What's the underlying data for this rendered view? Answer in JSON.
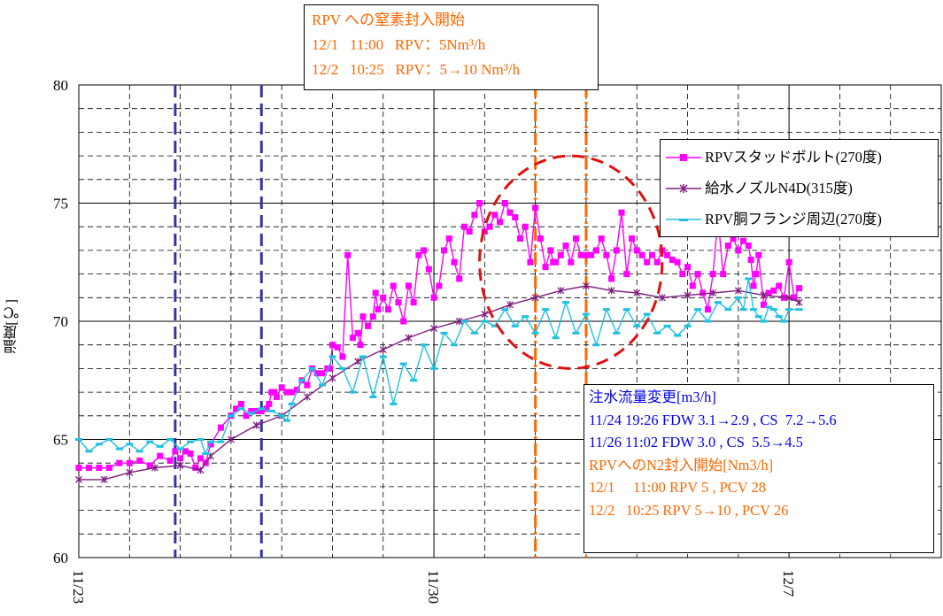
{
  "chart_data": {
    "type": "line",
    "ylabel": "温度[℃]",
    "ylim": [
      60,
      80
    ],
    "xlim": [
      "11/23",
      "12/10"
    ],
    "y_ticks": [
      60,
      65,
      70,
      75,
      80
    ],
    "x_ticks": [
      "11/23",
      "11/30",
      "12/7"
    ],
    "grid": true,
    "legend_position": "top-right",
    "colors": {
      "stud_bolt": "#ff00ff",
      "nozzle": "#7f1f7f",
      "flange": "#20c0e0",
      "blue_lines": "#3333aa",
      "orange_lines": "#ff6600",
      "ellipse": "#e01010"
    },
    "series": [
      {
        "name": "RPVスタッドボルト(270度)",
        "marker": "square",
        "points": [
          [
            0.0,
            63.8
          ],
          [
            0.2,
            63.8
          ],
          [
            0.4,
            63.8
          ],
          [
            0.6,
            63.8
          ],
          [
            0.8,
            64.0
          ],
          [
            1.0,
            64.0
          ],
          [
            1.2,
            64.1
          ],
          [
            1.4,
            63.9
          ],
          [
            1.6,
            64.3
          ],
          [
            1.8,
            64.1
          ],
          [
            1.9,
            64.5
          ],
          [
            2.0,
            64.2
          ],
          [
            2.1,
            64.5
          ],
          [
            2.2,
            64.4
          ],
          [
            2.3,
            63.8
          ],
          [
            2.4,
            64.2
          ],
          [
            2.5,
            64.0
          ],
          [
            2.6,
            64.8
          ],
          [
            2.8,
            65.5
          ],
          [
            3.0,
            66.0
          ],
          [
            3.1,
            66.3
          ],
          [
            3.2,
            66.5
          ],
          [
            3.3,
            66.0
          ],
          [
            3.4,
            66.2
          ],
          [
            3.5,
            66.2
          ],
          [
            3.6,
            66.2
          ],
          [
            3.7,
            66.3
          ],
          [
            3.75,
            66.5
          ],
          [
            3.8,
            67.0
          ],
          [
            3.85,
            67.0
          ],
          [
            3.9,
            66.8
          ],
          [
            4.0,
            67.2
          ],
          [
            4.1,
            67.0
          ],
          [
            4.2,
            67.0
          ],
          [
            4.3,
            67.1
          ],
          [
            4.4,
            67.5
          ],
          [
            4.5,
            67.3
          ],
          [
            4.6,
            68.0
          ],
          [
            4.7,
            67.8
          ],
          [
            4.8,
            67.8
          ],
          [
            4.9,
            68.0
          ],
          [
            4.95,
            68.0
          ],
          [
            5.0,
            69.0
          ],
          [
            5.1,
            68.9
          ],
          [
            5.2,
            68.5
          ],
          [
            5.3,
            72.8
          ],
          [
            5.4,
            69.3
          ],
          [
            5.5,
            69.5
          ],
          [
            5.55,
            69.0
          ],
          [
            5.6,
            70.2
          ],
          [
            5.7,
            69.8
          ],
          [
            5.8,
            70.2
          ],
          [
            5.85,
            71.2
          ],
          [
            5.9,
            70.5
          ],
          [
            6.0,
            71.0
          ],
          [
            6.1,
            70.5
          ],
          [
            6.2,
            71.5
          ],
          [
            6.3,
            70.8
          ],
          [
            6.4,
            70.0
          ],
          [
            6.5,
            71.5
          ],
          [
            6.6,
            70.8
          ],
          [
            6.7,
            72.8
          ],
          [
            6.8,
            73.0
          ],
          [
            6.9,
            72.2
          ],
          [
            7.0,
            71.0
          ],
          [
            7.1,
            71.5
          ],
          [
            7.2,
            73.0
          ],
          [
            7.3,
            73.5
          ],
          [
            7.4,
            72.5
          ],
          [
            7.5,
            71.8
          ],
          [
            7.6,
            74.0
          ],
          [
            7.7,
            73.8
          ],
          [
            7.8,
            74.5
          ],
          [
            7.9,
            75.0
          ],
          [
            8.0,
            73.8
          ],
          [
            8.1,
            74.0
          ],
          [
            8.2,
            74.5
          ],
          [
            8.3,
            74.2
          ],
          [
            8.4,
            75.0
          ],
          [
            8.5,
            74.6
          ],
          [
            8.6,
            74.4
          ],
          [
            8.7,
            73.5
          ],
          [
            8.8,
            74.0
          ],
          [
            8.9,
            72.5
          ],
          [
            9.0,
            74.8
          ],
          [
            9.1,
            73.5
          ],
          [
            9.2,
            72.3
          ],
          [
            9.3,
            73.0
          ],
          [
            9.35,
            72.5
          ],
          [
            9.4,
            72.5
          ],
          [
            9.5,
            72.8
          ],
          [
            9.6,
            73.2
          ],
          [
            9.7,
            72.5
          ],
          [
            9.8,
            73.5
          ],
          [
            9.9,
            72.8
          ],
          [
            10.0,
            72.8
          ],
          [
            10.1,
            72.8
          ],
          [
            10.2,
            73.0
          ],
          [
            10.3,
            73.5
          ],
          [
            10.4,
            72.8
          ],
          [
            10.5,
            71.8
          ],
          [
            10.6,
            73.0
          ],
          [
            10.7,
            74.6
          ],
          [
            10.8,
            72.0
          ],
          [
            10.9,
            73.5
          ],
          [
            11.0,
            73.0
          ],
          [
            11.1,
            72.8
          ],
          [
            11.2,
            72.5
          ],
          [
            11.3,
            72.8
          ],
          [
            11.4,
            72.5
          ],
          [
            11.5,
            73.0
          ],
          [
            11.6,
            72.8
          ],
          [
            11.7,
            72.6
          ],
          [
            11.8,
            72.5
          ],
          [
            11.9,
            72.0
          ],
          [
            12.0,
            72.3
          ],
          [
            12.1,
            71.5
          ],
          [
            12.2,
            72.0
          ],
          [
            12.3,
            71.2
          ],
          [
            12.4,
            70.5
          ],
          [
            12.5,
            72.0
          ],
          [
            12.6,
            74.4
          ],
          [
            12.7,
            72.0
          ],
          [
            12.8,
            73.2
          ],
          [
            12.9,
            73.5
          ],
          [
            13.0,
            73.0
          ],
          [
            13.1,
            73.4
          ],
          [
            13.2,
            73.2
          ],
          [
            13.25,
            72.6
          ],
          [
            13.3,
            71.5
          ],
          [
            13.35,
            72.0
          ],
          [
            13.4,
            72.8
          ],
          [
            13.5,
            70.7
          ],
          [
            13.6,
            71.2
          ],
          [
            13.7,
            71.3
          ],
          [
            13.8,
            71.5
          ],
          [
            13.9,
            71.0
          ],
          [
            14.0,
            72.5
          ],
          [
            14.1,
            71.0
          ],
          [
            14.2,
            71.4
          ]
        ]
      },
      {
        "name": "給水ノズルN4D(315度)",
        "marker": "star",
        "points": [
          [
            0.0,
            63.3
          ],
          [
            0.5,
            63.3
          ],
          [
            1.0,
            63.6
          ],
          [
            1.5,
            63.8
          ],
          [
            2.0,
            63.9
          ],
          [
            2.4,
            63.7
          ],
          [
            2.6,
            64.3
          ],
          [
            3.0,
            65.0
          ],
          [
            3.5,
            65.6
          ],
          [
            4.0,
            66.0
          ],
          [
            4.5,
            66.8
          ],
          [
            5.0,
            67.6
          ],
          [
            5.5,
            68.3
          ],
          [
            6.0,
            68.8
          ],
          [
            6.5,
            69.3
          ],
          [
            7.0,
            69.7
          ],
          [
            7.5,
            70.0
          ],
          [
            8.0,
            70.3
          ],
          [
            8.5,
            70.7
          ],
          [
            9.0,
            71.0
          ],
          [
            9.5,
            71.3
          ],
          [
            10.0,
            71.5
          ],
          [
            10.5,
            71.3
          ],
          [
            11.0,
            71.2
          ],
          [
            11.5,
            71.0
          ],
          [
            12.0,
            71.1
          ],
          [
            12.5,
            71.2
          ],
          [
            13.0,
            71.3
          ],
          [
            13.5,
            71.1
          ],
          [
            14.0,
            71.0
          ],
          [
            14.2,
            70.8
          ]
        ]
      },
      {
        "name": "RPV胴フランジ周辺(270度)",
        "marker": "dash",
        "points": [
          [
            0.0,
            65.0
          ],
          [
            0.2,
            64.5
          ],
          [
            0.4,
            64.8
          ],
          [
            0.6,
            65.0
          ],
          [
            0.8,
            64.6
          ],
          [
            1.0,
            64.8
          ],
          [
            1.2,
            64.5
          ],
          [
            1.4,
            64.9
          ],
          [
            1.6,
            64.7
          ],
          [
            1.8,
            65.0
          ],
          [
            2.0,
            64.6
          ],
          [
            2.2,
            64.9
          ],
          [
            2.4,
            65.0
          ],
          [
            2.5,
            64.4
          ],
          [
            2.6,
            64.9
          ],
          [
            2.8,
            64.9
          ],
          [
            3.0,
            66.0
          ],
          [
            3.2,
            66.3
          ],
          [
            3.4,
            66.1
          ],
          [
            3.6,
            66.3
          ],
          [
            3.8,
            66.2
          ],
          [
            4.0,
            66.0
          ],
          [
            4.1,
            65.8
          ],
          [
            4.2,
            66.5
          ],
          [
            4.4,
            67.5
          ],
          [
            4.6,
            68.0
          ],
          [
            4.8,
            67.3
          ],
          [
            5.0,
            68.5
          ],
          [
            5.2,
            68.0
          ],
          [
            5.4,
            67.0
          ],
          [
            5.6,
            68.5
          ],
          [
            5.8,
            66.8
          ],
          [
            6.0,
            68.5
          ],
          [
            6.2,
            66.5
          ],
          [
            6.4,
            68.2
          ],
          [
            6.6,
            67.5
          ],
          [
            6.8,
            69.0
          ],
          [
            7.0,
            68.0
          ],
          [
            7.2,
            69.5
          ],
          [
            7.4,
            69.0
          ],
          [
            7.6,
            70.0
          ],
          [
            7.8,
            69.5
          ],
          [
            8.0,
            70.0
          ],
          [
            8.2,
            69.8
          ],
          [
            8.4,
            70.5
          ],
          [
            8.6,
            69.8
          ],
          [
            8.8,
            70.2
          ],
          [
            9.0,
            69.5
          ],
          [
            9.2,
            70.5
          ],
          [
            9.4,
            69.3
          ],
          [
            9.6,
            70.8
          ],
          [
            9.8,
            69.5
          ],
          [
            10.0,
            70.3
          ],
          [
            10.2,
            69.0
          ],
          [
            10.4,
            70.5
          ],
          [
            10.6,
            69.5
          ],
          [
            10.8,
            70.5
          ],
          [
            11.0,
            69.8
          ],
          [
            11.2,
            70.3
          ],
          [
            11.4,
            69.5
          ],
          [
            11.6,
            69.8
          ],
          [
            11.8,
            69.4
          ],
          [
            12.0,
            69.8
          ],
          [
            12.2,
            70.5
          ],
          [
            12.4,
            70.0
          ],
          [
            12.6,
            70.8
          ],
          [
            12.8,
            70.5
          ],
          [
            13.0,
            71.0
          ],
          [
            13.1,
            70.5
          ],
          [
            13.2,
            71.8
          ],
          [
            13.3,
            70.5
          ],
          [
            13.4,
            70.2
          ],
          [
            13.5,
            70.0
          ],
          [
            13.6,
            70.6
          ],
          [
            13.7,
            70.5
          ],
          [
            13.8,
            70.2
          ],
          [
            13.9,
            70.0
          ],
          [
            14.0,
            70.5
          ],
          [
            14.2,
            70.5
          ]
        ]
      }
    ],
    "vertical_markers": [
      {
        "x": 1.9,
        "style": "dashed",
        "color": "#3333aa"
      },
      {
        "x": 3.6,
        "style": "dashed",
        "color": "#3333aa"
      },
      {
        "x": 9.0,
        "style": "dashdot",
        "color": "#ff6600"
      },
      {
        "x": 10.0,
        "style": "dashdot",
        "color": "#ff6600"
      }
    ],
    "highlight_ellipse": {
      "center": [
        9.7,
        72.5
      ],
      "radii_data": [
        1.8,
        4.5
      ]
    }
  },
  "top_note": {
    "line1": "RPV への窒素封入開始",
    "line2": "12/1   11:00   RPV：5Nm³/h",
    "line3": "12/2   10:25   RPV：5→10 Nm³/h"
  },
  "info_box": {
    "title": "注水流量変更[m3/h]",
    "line1": "11/24 19:26 FDW 3.1→2.9 , CS  7.2→5.6",
    "line2": "11/26 11:02 FDW 3.0 , CS  5.5→4.5",
    "title2": "RPVへのN2封入開始[Nm3/h]",
    "line3": "12/1     11:00 RPV 5 , PCV 28",
    "line4": "12/2   10:25 RPV 5→10 , PCV 26",
    "color_blue": "#0000ee",
    "color_orange": "#ff6600"
  }
}
